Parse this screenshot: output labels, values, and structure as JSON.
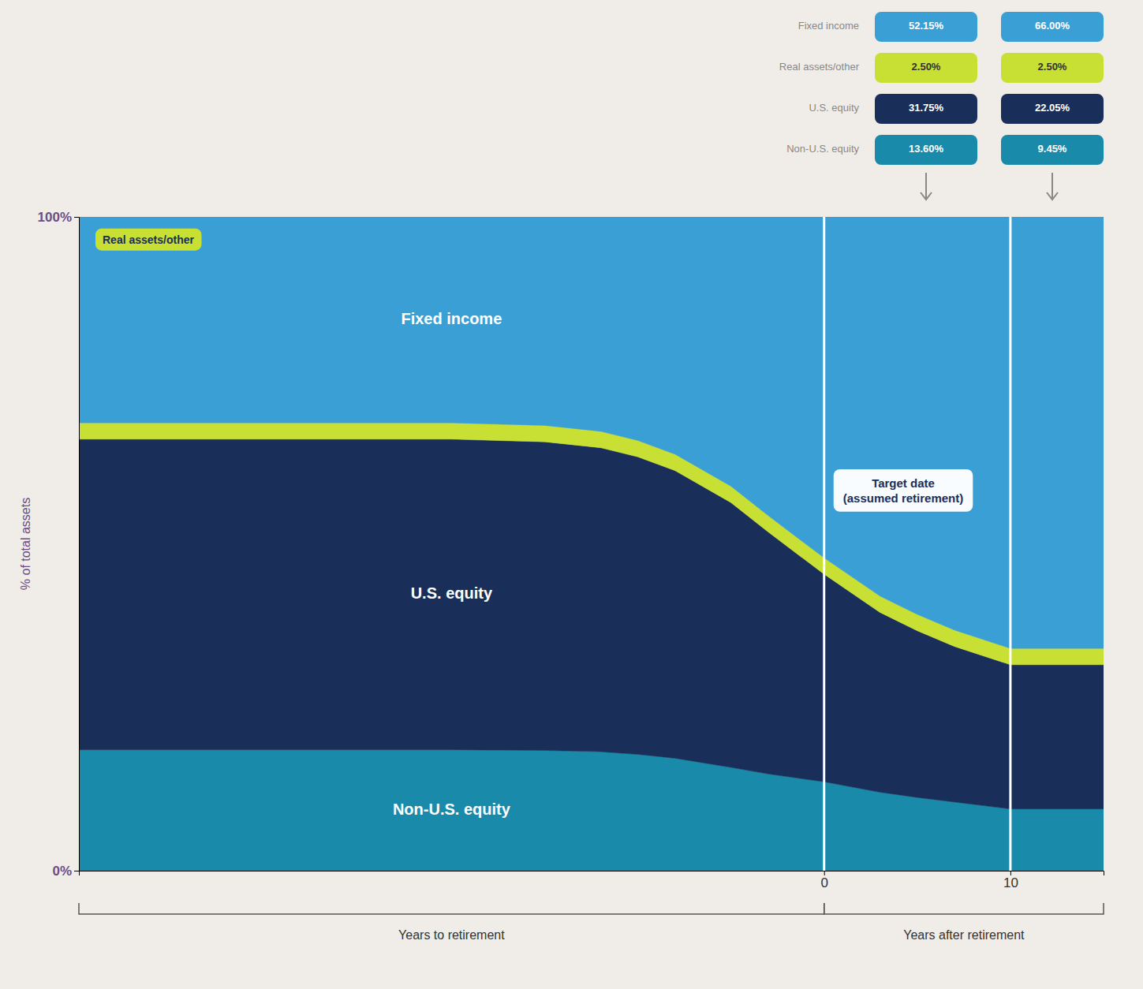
{
  "chart_data": {
    "type": "area",
    "stacked": true,
    "legend": "top-right",
    "ylabel": "% of total assets",
    "xlabel": [
      "Years to retirement",
      "Years after retirement"
    ],
    "annotations": [
      "Target date\n(assumed retirement)"
    ],
    "x": [
      -40,
      -35,
      -30,
      -25,
      -20,
      -15,
      -12,
      -10,
      -8,
      -5,
      -3,
      0,
      3,
      5,
      7,
      10,
      15
    ],
    "xlim": [
      -40,
      15
    ],
    "xticks": [
      0,
      10
    ],
    "ylim": [
      0,
      1
    ],
    "yticks": [
      {
        "value": 0,
        "label": "0%"
      },
      {
        "value": 1,
        "label": "100%"
      }
    ],
    "series": [
      {
        "name": "Non-U.S. equity",
        "color": "#1a8aaa",
        "values": [
          0.185,
          0.185,
          0.185,
          0.185,
          0.185,
          0.184,
          0.182,
          0.178,
          0.172,
          0.158,
          0.148,
          0.136,
          0.12,
          0.112,
          0.105,
          0.0945,
          0.0945
        ],
        "value_labels": [
          null,
          null,
          null,
          null,
          null,
          null,
          null,
          null,
          null,
          null,
          null,
          "13.60%",
          null,
          null,
          null,
          "9.45%",
          null
        ]
      },
      {
        "name": "U.S. equity",
        "color": "#1a2e5a",
        "values": [
          0.475,
          0.475,
          0.475,
          0.475,
          0.475,
          0.472,
          0.465,
          0.455,
          0.44,
          0.405,
          0.37,
          0.3175,
          0.275,
          0.255,
          0.238,
          0.2205,
          0.2205
        ],
        "value_labels": [
          null,
          null,
          null,
          null,
          null,
          null,
          null,
          null,
          null,
          null,
          null,
          "31.75%",
          null,
          null,
          null,
          "22.05%",
          null
        ]
      },
      {
        "name": "Real assets/other",
        "color": "#c8e033",
        "values": [
          0.025,
          0.025,
          0.025,
          0.025,
          0.025,
          0.025,
          0.025,
          0.025,
          0.025,
          0.025,
          0.025,
          0.025,
          0.025,
          0.025,
          0.025,
          0.025,
          0.025
        ],
        "value_labels": [
          null,
          null,
          null,
          null,
          null,
          null,
          null,
          null,
          null,
          null,
          null,
          "2.50%",
          null,
          null,
          null,
          "2.50%",
          null
        ]
      },
      {
        "name": "Fixed income",
        "color": "#3a9fd4",
        "values": [
          0.315,
          0.315,
          0.315,
          0.315,
          0.315,
          0.319,
          0.328,
          0.342,
          0.363,
          0.412,
          0.457,
          0.5215,
          0.58,
          0.608,
          0.632,
          0.66,
          0.66
        ],
        "value_labels": [
          null,
          null,
          null,
          null,
          null,
          null,
          null,
          null,
          null,
          null,
          null,
          "52.15%",
          null,
          null,
          null,
          "66.00%",
          null
        ]
      }
    ]
  }
}
